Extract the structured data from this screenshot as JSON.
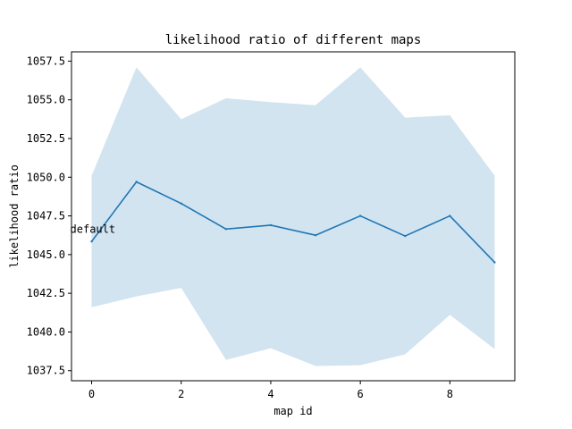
{
  "chart_data": {
    "type": "line",
    "title": "likelihood ratio of different maps",
    "xlabel": "map id",
    "ylabel": "likelihood ratio",
    "x": [
      0,
      1,
      2,
      3,
      4,
      5,
      6,
      7,
      8,
      9
    ],
    "series": [
      {
        "values": [
          1045.85,
          1049.7,
          1048.3,
          1046.65,
          1046.9,
          1046.25,
          1047.5,
          1046.2,
          1047.5,
          1044.5
        ],
        "lower": [
          1041.6,
          1042.3,
          1042.85,
          1038.2,
          1038.95,
          1037.8,
          1037.85,
          1038.55,
          1041.1,
          1038.9
        ],
        "upper": [
          1050.1,
          1057.1,
          1053.75,
          1055.1,
          1054.85,
          1054.65,
          1057.1,
          1053.85,
          1054.0,
          1050.1
        ],
        "color": "#1f77b4",
        "band_color": "#1f77b4"
      }
    ],
    "xlim": [
      -0.45,
      9.45
    ],
    "ylim": [
      1036.85,
      1058.1
    ],
    "xticks": [
      "0",
      "2",
      "4",
      "6",
      "8"
    ],
    "xtick_values": [
      0,
      2,
      4,
      6,
      8
    ],
    "yticks": [
      "1037.5",
      "1040.0",
      "1042.5",
      "1045.0",
      "1047.5",
      "1050.0",
      "1052.5",
      "1055.0",
      "1057.5"
    ],
    "ytick_values": [
      1037.5,
      1040.0,
      1042.5,
      1045.0,
      1047.5,
      1050.0,
      1052.5,
      1055.0,
      1057.5
    ],
    "annotations": [
      {
        "text": "default",
        "x": 0,
        "y": 1046.65
      }
    ],
    "grid": false,
    "legend": "none"
  }
}
